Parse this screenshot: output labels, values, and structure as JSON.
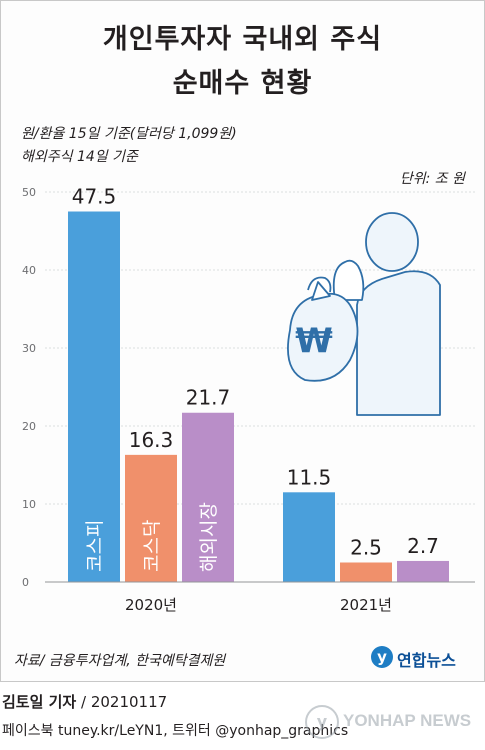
{
  "title_line1": "개인투자자 국내외 주식",
  "title_line2": "순매수 현황",
  "note_line1": "원/환율 15일 기준(달러당 1,099원)",
  "note_line2": "해외주식 14일 기준",
  "unit": "단위: 조 원",
  "source": "자료/ 금융투자업계, 한국예탁결제원",
  "logo_text": "연합뉴스",
  "reporter_name": "김토일 기자",
  "reporter_date": " / 20210117",
  "sns": "페이스북 tuney.kr/LeYN1, 트위터 @yonhap_graphics",
  "watermark": "YONHAP NEWS",
  "colors": {
    "kospi": "#4a9fdb",
    "kosdaq": "#f0906b",
    "overseas": "#b98ec8",
    "illustration": "#2f6fa8"
  },
  "chart_data": {
    "type": "bar",
    "categories": [
      "2020년",
      "2021년"
    ],
    "series": [
      {
        "name": "코스피",
        "values": [
          47.5,
          11.5
        ]
      },
      {
        "name": "코스닥",
        "values": [
          16.3,
          2.5
        ]
      },
      {
        "name": "해외시장",
        "values": [
          21.7,
          2.7
        ]
      }
    ],
    "value_labels": [
      [
        "47.5",
        "11.5"
      ],
      [
        "16.3",
        "2.5"
      ],
      [
        "21.7",
        "2.7"
      ]
    ],
    "y_ticks": [
      "0",
      "10",
      "20",
      "30",
      "40",
      "50"
    ],
    "ylim": [
      0,
      50
    ],
    "grid": true
  }
}
